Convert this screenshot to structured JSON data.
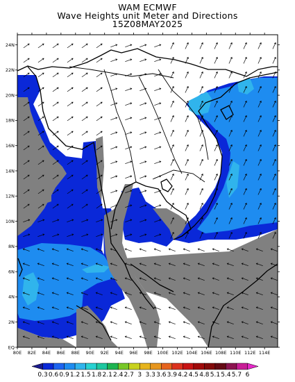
{
  "title": {
    "line1": "WAM ECMWF",
    "line2": "Wave Heights unit Meter and Directions",
    "line3": "15Z08MAY2025"
  },
  "colors": {
    "land": "#808080",
    "sea": "#ffffff",
    "wave_low": "#0a28d8",
    "wave_mid": "#1e8cf0",
    "wave_high": "#30b4ec",
    "wave_peak": "#5ad2f0",
    "frame": "#000000"
  },
  "map": {
    "lon_labels": [
      "80E",
      "82E",
      "84E",
      "86E",
      "88E",
      "90E",
      "92E",
      "94E",
      "96E",
      "98E",
      "100E",
      "102E",
      "104E",
      "106E",
      "108E",
      "110E",
      "112E",
      "114E"
    ],
    "lat_labels": [
      "EQ",
      "2N",
      "4N",
      "6N",
      "8N",
      "10N",
      "12N",
      "14N",
      "16N",
      "18N",
      "20N",
      "22N",
      "24N"
    ]
  },
  "colorbar": {
    "labels": [
      "0.3",
      "0.6",
      "0.9",
      "1.2",
      "1.5",
      "1.8",
      "2.1",
      "2.4",
      "2.7",
      "3",
      "3.3",
      "3.6",
      "3.9",
      "4.2",
      "4.5",
      "4.8",
      "5.1",
      "5.4",
      "5.7",
      "6"
    ],
    "colors": [
      "#1a1a8c",
      "#0a28d8",
      "#1e64f0",
      "#1e8cf0",
      "#30b4ec",
      "#28d2d2",
      "#1ec8a0",
      "#1eb450",
      "#78c828",
      "#c8d21e",
      "#e6b41e",
      "#e6961e",
      "#e6641e",
      "#dc321e",
      "#c81414",
      "#a00a0a",
      "#820a0a",
      "#640a14",
      "#8c1450",
      "#c81e96",
      "#e628c8"
    ]
  }
}
